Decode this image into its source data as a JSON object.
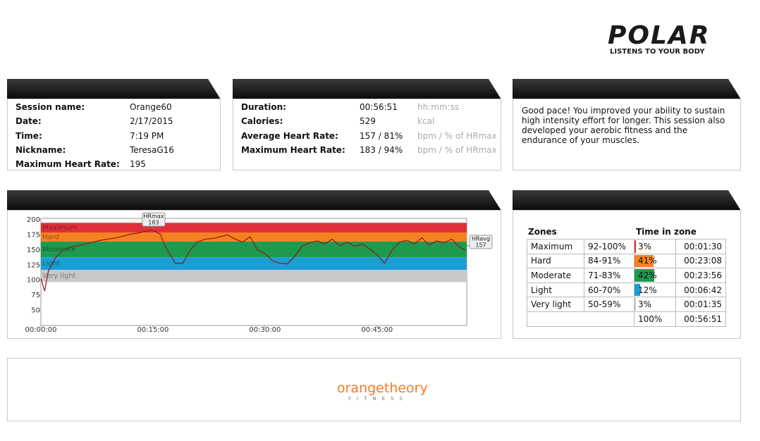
{
  "logo": {
    "brand": "POLAR",
    "tagline": "LISTENS TO YOUR BODY"
  },
  "session": {
    "rows": [
      [
        "Session name:",
        "Orange60"
      ],
      [
        "Date:",
        "2/17/2015"
      ],
      [
        "Time:",
        "7:19 PM"
      ],
      [
        "Nickname:",
        "TeresaG16"
      ],
      [
        "Maximum Heart Rate:",
        "195"
      ]
    ]
  },
  "summary": {
    "rows": [
      [
        "Duration:",
        "00:56:51",
        "hh:mm:ss"
      ],
      [
        "Calories:",
        "529",
        "kcal"
      ],
      [
        "Average Heart Rate:",
        "157 / 81%",
        "bpm / % of HRmax"
      ],
      [
        "Maximum Heart Rate:",
        "183 / 94%",
        "bpm / % of HRmax"
      ]
    ]
  },
  "feedback": "Good pace! You improved your ability to sustain high intensity effort for longer. This session also developed your aerobic fitness and the endurance of your muscles.",
  "chart_data": {
    "type": "line",
    "color": "#8b1a1a",
    "x": [
      0,
      0.5,
      1,
      2,
      3,
      4,
      5,
      6,
      7,
      8,
      9,
      10,
      11,
      12,
      13,
      14,
      15,
      16,
      16.5,
      17,
      18,
      19,
      20,
      21,
      22,
      23,
      24,
      25,
      26,
      27,
      28,
      29,
      30,
      31,
      32,
      33,
      34,
      35,
      36,
      37,
      38,
      39,
      40,
      41,
      42,
      43,
      44,
      45,
      46,
      47,
      48,
      49,
      50,
      51,
      52,
      53,
      54,
      55,
      56,
      56.8
    ],
    "values": [
      103,
      82,
      115,
      138,
      150,
      155,
      157,
      160,
      163,
      166,
      168,
      170,
      173,
      176,
      178,
      181,
      183,
      176,
      160,
      148,
      128,
      128,
      150,
      163,
      168,
      169,
      172,
      175,
      168,
      163,
      172,
      150,
      144,
      132,
      128,
      127,
      140,
      157,
      162,
      165,
      160,
      168,
      157,
      163,
      156,
      160,
      152,
      142,
      128,
      150,
      163,
      166,
      160,
      170,
      158,
      165,
      162,
      168,
      155,
      150
    ],
    "xlim": [
      0,
      57
    ],
    "xticks": [
      {
        "value": 0,
        "label": "00:00:00"
      },
      {
        "value": 15,
        "label": "00:15:00"
      },
      {
        "value": 30,
        "label": "00:30:00"
      },
      {
        "value": 45,
        "label": "00:45:00"
      }
    ],
    "ylim": [
      25,
      200
    ],
    "yticks": [
      50,
      75,
      100,
      125,
      150,
      175,
      200
    ],
    "bands": [
      {
        "name": "Maximum",
        "low": 179,
        "high": 195,
        "color": "#e0303a"
      },
      {
        "name": "Hard",
        "low": 164,
        "high": 179,
        "color": "#f58220"
      },
      {
        "name": "Moderate",
        "low": 138,
        "high": 164,
        "color": "#1e9a50"
      },
      {
        "name": "Light",
        "low": 117,
        "high": 138,
        "color": "#1a9fd4"
      },
      {
        "name": "Very light",
        "low": 97,
        "high": 117,
        "color": "#c8c8c8"
      }
    ],
    "annotations": [
      {
        "label": "HRmax",
        "value": 183
      },
      {
        "label": "HRavg",
        "value": 157
      }
    ]
  },
  "zones": {
    "head_zones": "Zones",
    "head_time": "Time in zone",
    "rows": [
      {
        "name": "Maximum",
        "range": "92-100%",
        "percent": 3,
        "percent_label": "3%",
        "time": "00:01:30",
        "color": "#e0303a"
      },
      {
        "name": "Hard",
        "range": "84-91%",
        "percent": 41,
        "percent_label": "41%",
        "time": "00:23:08",
        "color": "#f58220"
      },
      {
        "name": "Moderate",
        "range": "71-83%",
        "percent": 42,
        "percent_label": "42%",
        "time": "00:23:56",
        "color": "#1e9a50"
      },
      {
        "name": "Light",
        "range": "60-70%",
        "percent": 12,
        "percent_label": "12%",
        "time": "00:06:42",
        "color": "#1a9fd4"
      },
      {
        "name": "Very light",
        "range": "50-59%",
        "percent": 3,
        "percent_label": "3%",
        "time": "00:01:35",
        "color": "#c8c8c8"
      }
    ],
    "total": {
      "percent_label": "100%",
      "time": "00:56:51"
    }
  },
  "footer": {
    "brand": "orangetheory",
    "sub": "FITNESS"
  }
}
